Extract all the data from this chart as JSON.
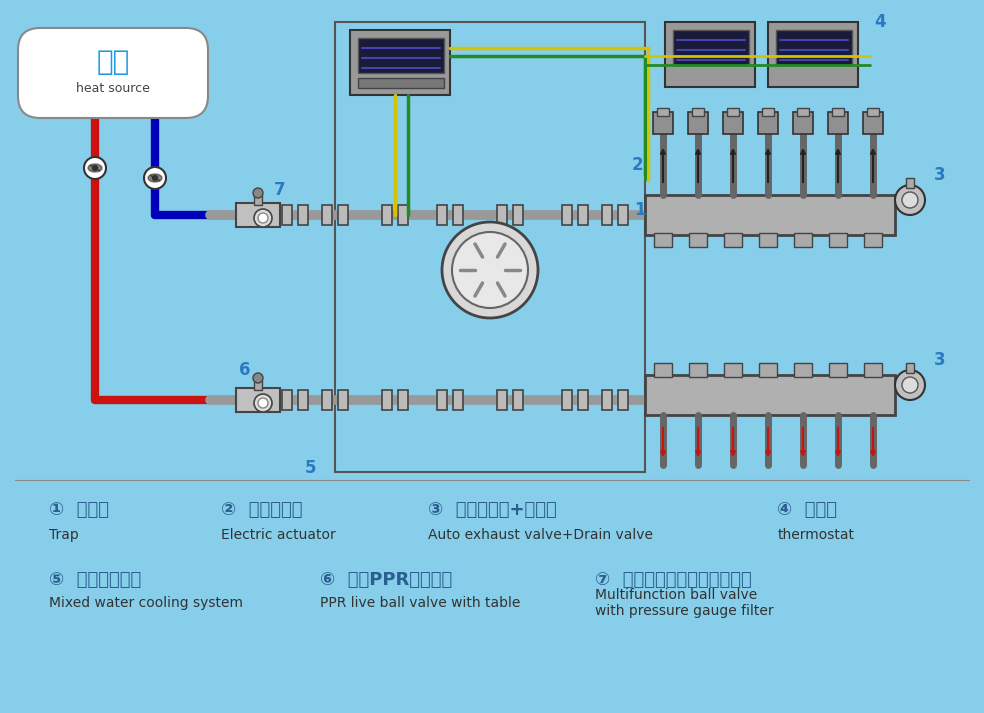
{
  "bg_color": "#87CEEB",
  "fig_width": 9.84,
  "fig_height": 7.13,
  "heat_source_cn": "热源",
  "heat_source_en": "heat source",
  "label_color": "#2a5f8f",
  "num_color": "#2a7abf",
  "legend_row1": [
    {
      "num": "①",
      "cn": "分水器",
      "en": "Trap",
      "xf": 0.05
    },
    {
      "num": "②",
      "cn": "电热执行器",
      "en": "Electric actuator",
      "xf": 0.225
    },
    {
      "num": "③",
      "cn": "自动排气阀+泄水阀",
      "en": "Auto exhaust valve+Drain valve",
      "xf": 0.435
    },
    {
      "num": "④",
      "cn": "温控器",
      "en": "thermostat",
      "xf": 0.79
    }
  ],
  "legend_row2": [
    {
      "num": "⑤",
      "cn": "混水降温系统",
      "en": "Mixed water cooling system",
      "xf": 0.05
    },
    {
      "num": "⑥",
      "cn": "带表PPR活接球阀",
      "en": "PPR live ball valve with table",
      "xf": 0.325
    },
    {
      "num": "⑦",
      "cn": "多功能带压力表过滤器球阀",
      "en": "Multifunction ball valve\nwith pressure gauge filter",
      "xf": 0.605
    }
  ],
  "red": "#cc1111",
  "blue_pipe": "#0000bb",
  "gray_pipe": "#999999",
  "dark_gray": "#666666",
  "wire_yellow": "#d4c400",
  "wire_green": "#228B22",
  "black": "#222222",
  "box_border": "#444444"
}
